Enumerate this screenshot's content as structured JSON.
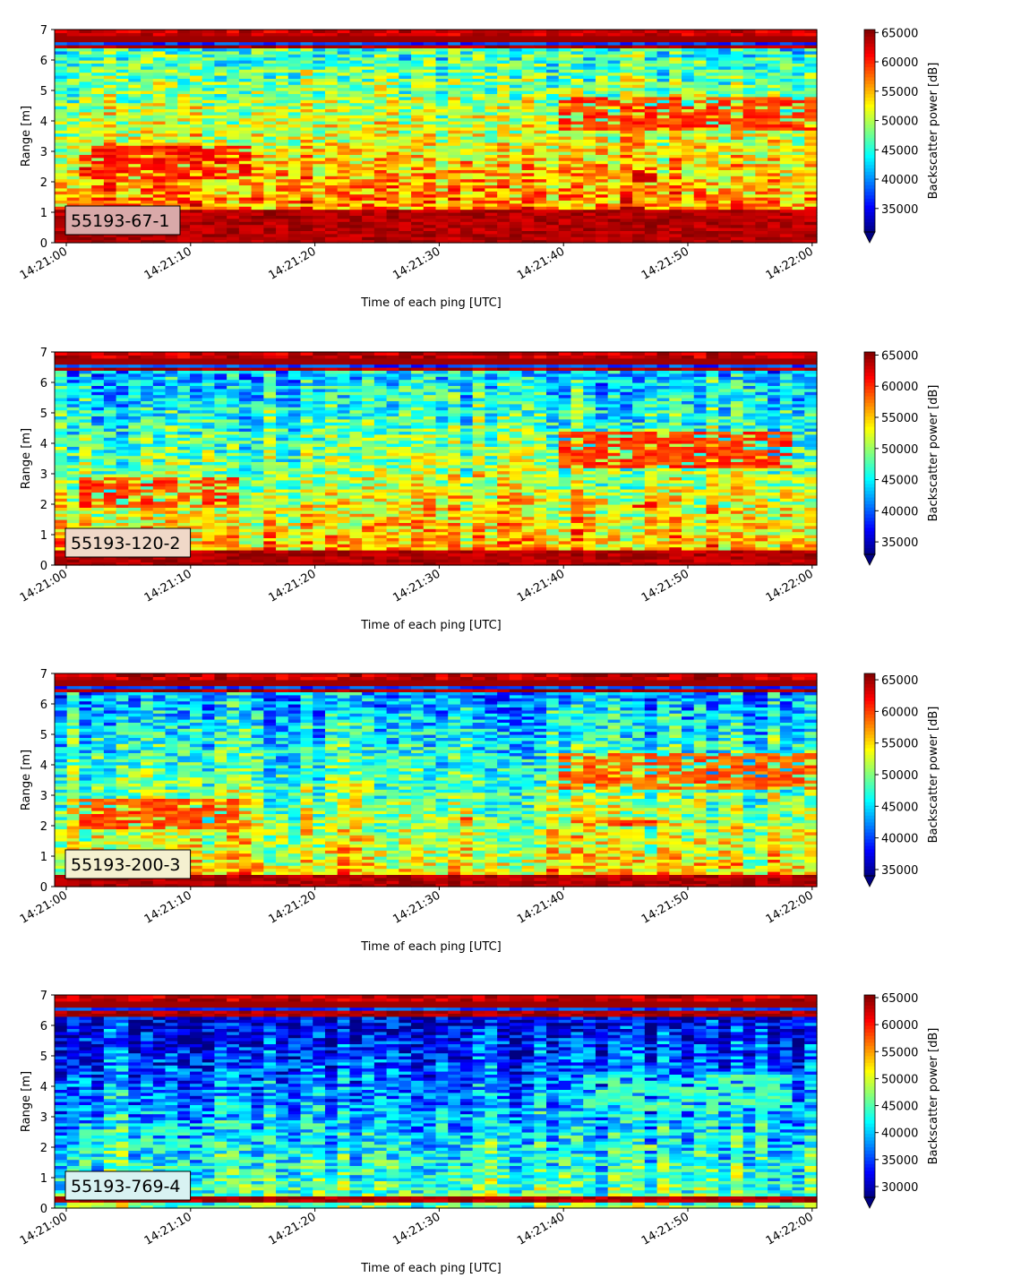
{
  "chart_data": [
    {
      "type": "heatmap",
      "label": "55193-67-1",
      "xlabel": "Time of each ping [UTC]",
      "ylabel": "Range [m]",
      "x_ticks": [
        "14:21:00",
        "14:21:10",
        "14:21:20",
        "14:21:30",
        "14:21:40",
        "14:21:50",
        "14:22:00"
      ],
      "y_ticks": [
        0,
        1,
        2,
        3,
        4,
        5,
        6,
        7
      ],
      "ylim": [
        0,
        7
      ],
      "colorbar": {
        "label": "Backscatter power [dB]",
        "min": 31000,
        "max": 65500,
        "extend": "min",
        "ticks": [
          35000,
          40000,
          45000,
          50000,
          55000,
          60000,
          65000
        ]
      },
      "colormap": "jet",
      "label_box_color": "#d9a9a9",
      "pattern": {
        "background_low": 0.55,
        "surface_band": [
          6.4,
          7.0
        ],
        "bottom_band": [
          0.0,
          1.1
        ],
        "features": [
          {
            "t": [
              1,
              15
            ],
            "r": [
              2.1,
              3.2
            ],
            "level": 0.92
          },
          {
            "t": [
              32,
              33
            ],
            "r": [
              2.3,
              2.7
            ],
            "level": 0.9
          },
          {
            "t": [
              40,
              61
            ],
            "r": [
              3.7,
              4.8
            ],
            "level": 0.88
          },
          {
            "t": [
              41,
              44
            ],
            "r": [
              2.2,
              2.6
            ],
            "level": 0.85
          },
          {
            "t": [
              46,
              48
            ],
            "r": [
              2.0,
              2.5
            ],
            "level": 0.95
          }
        ]
      }
    },
    {
      "type": "heatmap",
      "label": "55193-120-2",
      "xlabel": "Time of each ping [UTC]",
      "ylabel": "Range [m]",
      "x_ticks": [
        "14:21:00",
        "14:21:10",
        "14:21:20",
        "14:21:30",
        "14:21:40",
        "14:21:50",
        "14:22:00"
      ],
      "y_ticks": [
        0,
        1,
        2,
        3,
        4,
        5,
        6,
        7
      ],
      "ylim": [
        0,
        7
      ],
      "colorbar": {
        "label": "Backscatter power [dB]",
        "min": 33000,
        "max": 65500,
        "extend": "min",
        "ticks": [
          35000,
          40000,
          45000,
          50000,
          55000,
          60000,
          65000
        ]
      },
      "colormap": "jet",
      "label_box_color": "#f0d8c8",
      "pattern": {
        "background_low": 0.45,
        "surface_band": [
          6.4,
          7.0
        ],
        "bottom_band": [
          0.0,
          0.5
        ],
        "features": [
          {
            "t": [
              1,
              14
            ],
            "r": [
              1.9,
              2.9
            ],
            "level": 0.88
          },
          {
            "t": [
              32,
              33
            ],
            "r": [
              2.1,
              2.3
            ],
            "level": 0.85
          },
          {
            "t": [
              40,
              58
            ],
            "r": [
              3.2,
              4.4
            ],
            "level": 0.88
          },
          {
            "t": [
              41,
              44
            ],
            "r": [
              2.0,
              2.2
            ],
            "level": 0.85
          },
          {
            "t": [
              46,
              48
            ],
            "r": [
              1.9,
              2.1
            ],
            "level": 0.9
          }
        ]
      }
    },
    {
      "type": "heatmap",
      "label": "55193-200-3",
      "xlabel": "Time of each ping [UTC]",
      "ylabel": "Range [m]",
      "x_ticks": [
        "14:21:00",
        "14:21:10",
        "14:21:20",
        "14:21:30",
        "14:21:40",
        "14:21:50",
        "14:22:00"
      ],
      "y_ticks": [
        0,
        1,
        2,
        3,
        4,
        5,
        6,
        7
      ],
      "ylim": [
        0,
        7
      ],
      "colorbar": {
        "label": "Backscatter power [dB]",
        "min": 34000,
        "max": 66000,
        "extend": "min",
        "ticks": [
          35000,
          40000,
          45000,
          50000,
          55000,
          60000,
          65000
        ]
      },
      "colormap": "jet",
      "label_box_color": "#f4f0d0",
      "pattern": {
        "background_low": 0.4,
        "surface_band": [
          6.4,
          7.0
        ],
        "bottom_band": [
          0.0,
          0.4
        ],
        "features": [
          {
            "t": [
              1,
              14
            ],
            "r": [
              1.9,
              2.9
            ],
            "level": 0.86
          },
          {
            "t": [
              32,
              33
            ],
            "r": [
              2.1,
              2.3
            ],
            "level": 0.85
          },
          {
            "t": [
              40,
              60
            ],
            "r": [
              3.2,
              4.4
            ],
            "level": 0.84
          },
          {
            "t": [
              41,
              48
            ],
            "r": [
              2.0,
              2.2
            ],
            "level": 0.88
          }
        ]
      }
    },
    {
      "type": "heatmap",
      "label": "55193-769-4",
      "xlabel": "Time of each ping [UTC]",
      "ylabel": "Range [m]",
      "x_ticks": [
        "14:21:00",
        "14:21:10",
        "14:21:20",
        "14:21:30",
        "14:21:40",
        "14:21:50",
        "14:22:00"
      ],
      "y_ticks": [
        0,
        1,
        2,
        3,
        4,
        5,
        6,
        7
      ],
      "ylim": [
        0,
        7
      ],
      "colorbar": {
        "label": "Backscatter power [dB]",
        "min": 28000,
        "max": 65500,
        "extend": "min",
        "ticks": [
          30000,
          35000,
          40000,
          45000,
          50000,
          55000,
          60000,
          65000
        ]
      },
      "colormap": "jet",
      "label_box_color": "#d8f2f2",
      "pattern": {
        "background_low": 0.22,
        "surface_band": [
          6.3,
          7.0
        ],
        "bottom_band": [
          0.2,
          0.4
        ],
        "features": [
          {
            "t": [
              1,
              12
            ],
            "r": [
              1.9,
              2.8
            ],
            "level": 0.48
          },
          {
            "t": [
              42,
              58
            ],
            "r": [
              3.2,
              4.4
            ],
            "level": 0.5
          },
          {
            "t": [
              46,
              48
            ],
            "r": [
              1.9,
              2.1
            ],
            "level": 0.62
          }
        ]
      }
    }
  ]
}
